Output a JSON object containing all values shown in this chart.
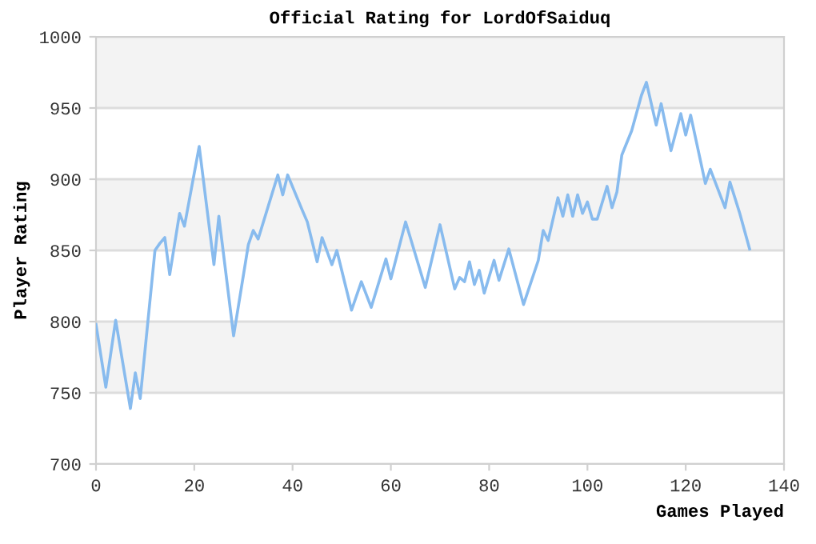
{
  "chart_data": {
    "type": "line",
    "title": "Official Rating for LordOfSaiduq",
    "xlabel": "Games Played",
    "ylabel": "Player Rating",
    "series": [
      {
        "color": "#88bbee",
        "x": [
          0,
          2,
          4,
          7,
          8,
          9,
          12,
          13,
          14,
          15,
          17,
          18,
          21,
          24,
          25,
          28,
          31,
          32,
          33,
          37,
          38,
          39,
          42,
          43,
          45,
          46,
          48,
          49,
          52,
          54,
          56,
          59,
          60,
          63,
          67,
          70,
          73,
          74,
          75,
          76,
          77,
          78,
          79,
          81,
          82,
          84,
          87,
          90,
          91,
          92,
          94,
          95,
          96,
          97,
          98,
          99,
          100,
          101,
          102,
          104,
          105,
          106,
          107,
          109,
          111,
          112,
          114,
          115,
          117,
          119,
          120,
          121,
          124,
          125,
          128,
          129,
          131,
          133
        ],
        "values": [
          798,
          754,
          801,
          739,
          764,
          746,
          850,
          855,
          859,
          833,
          876,
          867,
          923,
          840,
          874,
          790,
          854,
          864,
          858,
          903,
          889,
          903,
          878,
          870,
          842,
          859,
          840,
          850,
          808,
          828,
          810,
          844,
          830,
          870,
          824,
          868,
          823,
          831,
          828,
          842,
          826,
          836,
          820,
          843,
          829,
          851,
          812,
          843,
          864,
          857,
          887,
          874,
          889,
          874,
          889,
          876,
          884,
          872,
          872,
          895,
          880,
          891,
          917,
          934,
          959,
          968,
          938,
          953,
          920,
          946,
          931,
          945,
          897,
          907,
          880,
          898,
          876,
          851
        ]
      }
    ],
    "xlim": [
      0,
      140
    ],
    "xticks": [
      0,
      20,
      40,
      60,
      80,
      100,
      120,
      140
    ],
    "ylim": [
      700,
      1000
    ],
    "yticks": [
      700,
      750,
      800,
      850,
      900,
      950,
      1000
    ],
    "bands": [
      {
        "axis": "y",
        "from": 750,
        "to": 800,
        "color": "#f3f3f3"
      },
      {
        "axis": "y",
        "from": 850,
        "to": 900,
        "color": "#f3f3f3"
      },
      {
        "axis": "y",
        "from": 950,
        "to": 1000,
        "color": "#f3f3f3"
      }
    ],
    "grid": "y",
    "legend": false
  }
}
